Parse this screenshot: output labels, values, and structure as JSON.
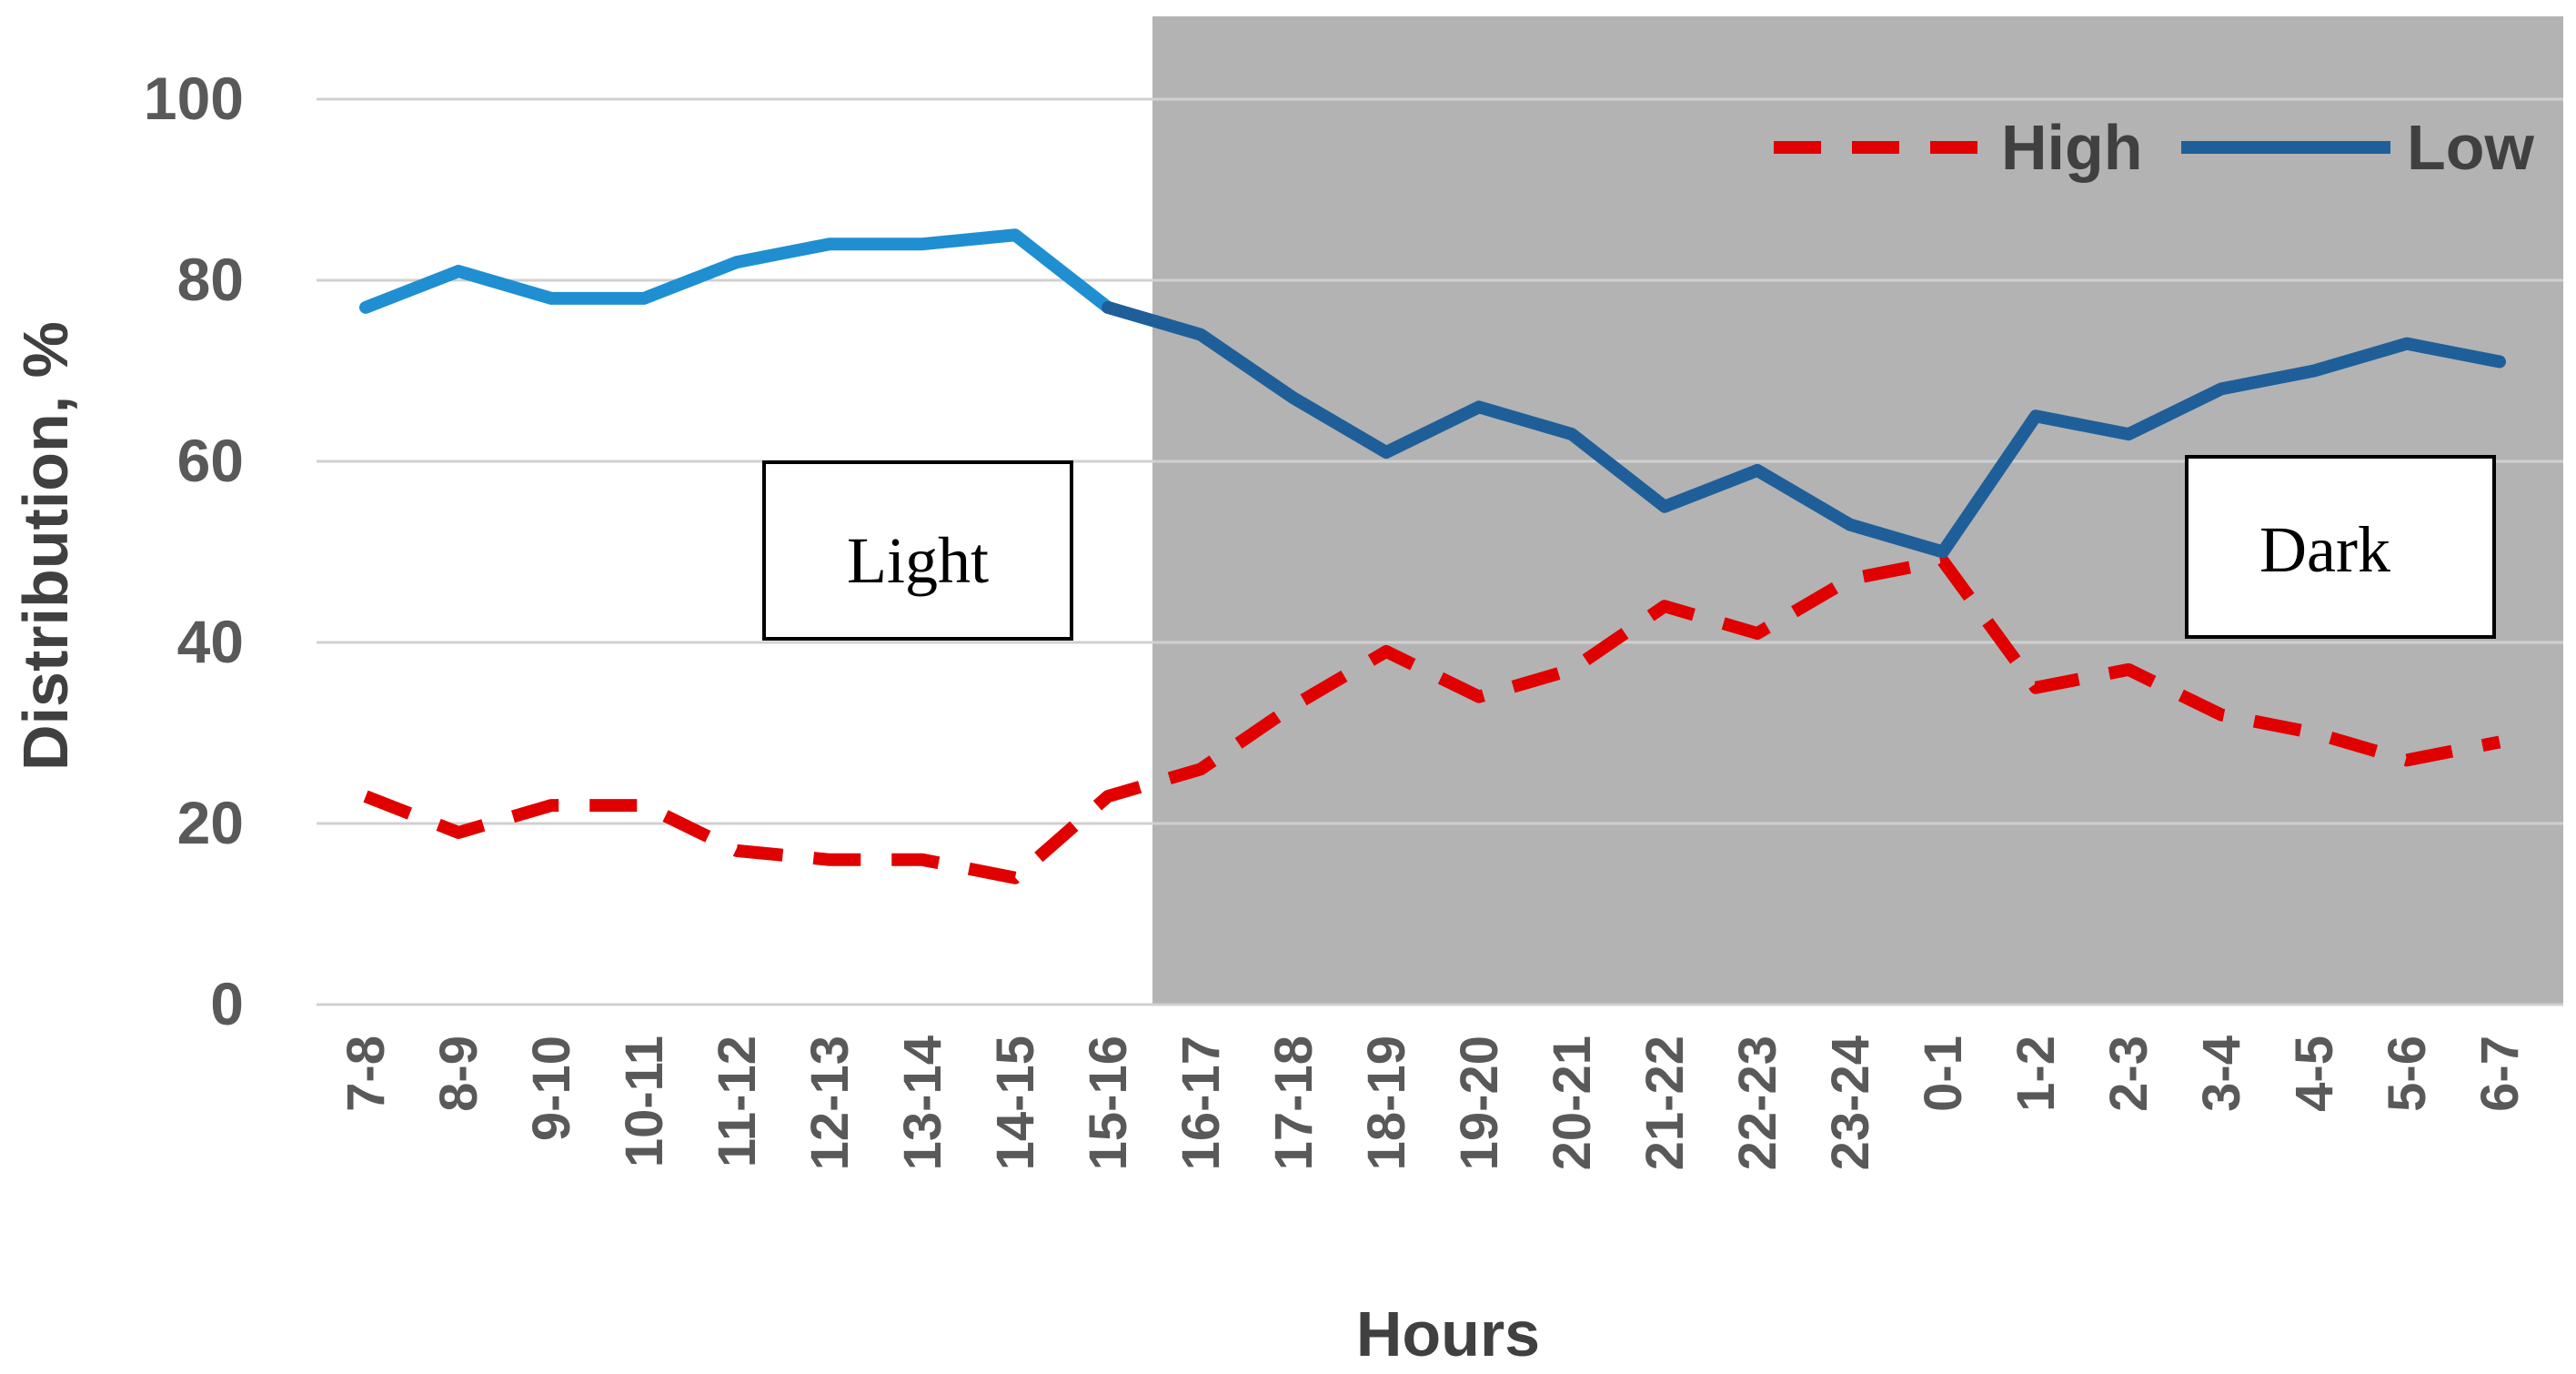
{
  "chart_data": {
    "type": "line",
    "xlabel": "Hours",
    "ylabel": "Distribution, %",
    "ylim": [
      0,
      100
    ],
    "yticks": [
      "0",
      "20",
      "40",
      "60",
      "80",
      "100"
    ],
    "categories": [
      "7-8",
      "8-9",
      "9-10",
      "10-11",
      "11-12",
      "12-13",
      "13-14",
      "14-15",
      "15-16",
      "16-17",
      "17-18",
      "18-19",
      "19-20",
      "20-21",
      "21-22",
      "22-23",
      "23-24",
      "0-1",
      "1-2",
      "2-3",
      "3-4",
      "4-5",
      "5-6",
      "6-7"
    ],
    "series": [
      {
        "name": "High",
        "color": "#e00000",
        "style": "dashed",
        "values": [
          23,
          19,
          22,
          22,
          17,
          16,
          16,
          14,
          23,
          26,
          33,
          39,
          34,
          37,
          44,
          41,
          47,
          49,
          35,
          37,
          32,
          30,
          27,
          29
        ]
      },
      {
        "name": "Low",
        "color_light": "#1f8fd1",
        "color_dark": "#1f5f99",
        "style": "solid",
        "values": [
          77,
          81,
          78,
          78,
          82,
          84,
          84,
          85,
          77,
          74,
          67,
          61,
          66,
          63,
          55,
          59,
          53,
          50,
          65,
          63,
          68,
          70,
          73,
          71
        ]
      }
    ],
    "regions": [
      {
        "label": "Light",
        "from_category": "7-8",
        "to_category": "15-16",
        "shaded": false
      },
      {
        "label": "Dark",
        "from_category": "16-17",
        "to_category": "6-7",
        "shaded": true,
        "color": "#b3b3b3"
      }
    ],
    "legend": {
      "position": "top-right",
      "entries": [
        "High",
        "Low"
      ]
    },
    "grid": true
  }
}
